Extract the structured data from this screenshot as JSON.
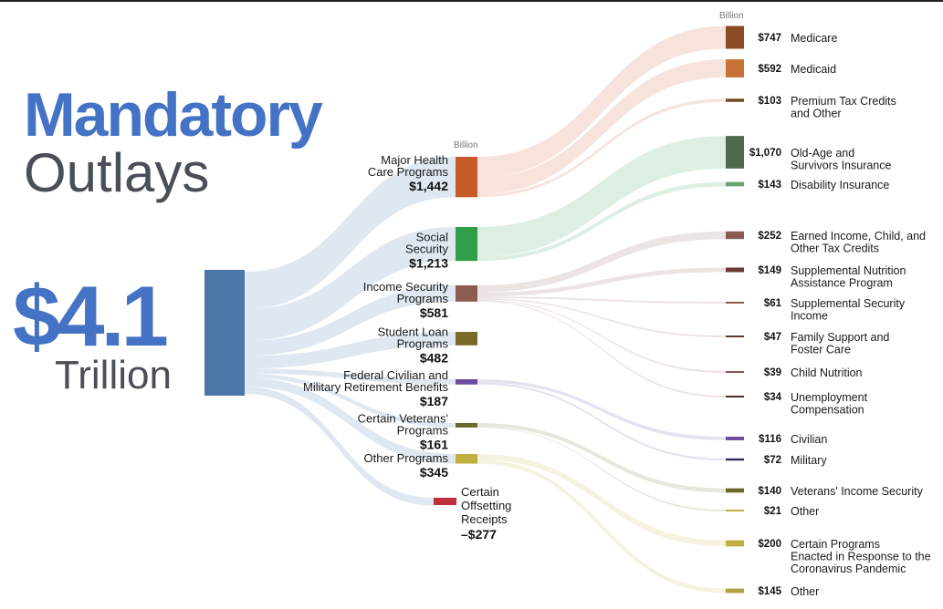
{
  "title": "Mandatory",
  "subtitle": "Outlays",
  "total": {
    "value": "$4.1",
    "unit": "Trillion"
  },
  "unit_headers": {
    "middle": "Billion",
    "right": "Billion"
  },
  "chart_data": {
    "type": "sankey",
    "unit": "Billion",
    "total": 4100,
    "categories": [
      {
        "name_lines": [
          "Major Health",
          "Care Programs"
        ],
        "value": 1442,
        "value_label": "$1,442",
        "color": "#c65a28",
        "items": [
          {
            "label_lines": [
              "Medicare"
            ],
            "value": 747,
            "value_label": "$747",
            "color": "#8b4a22"
          },
          {
            "label_lines": [
              "Medicaid"
            ],
            "value": 592,
            "value_label": "$592",
            "color": "#c87137"
          },
          {
            "label_lines": [
              "Premium Tax Credits",
              "and Other"
            ],
            "value": 103,
            "value_label": "$103",
            "color": "#6b4a1c"
          }
        ]
      },
      {
        "name_lines": [
          "Social",
          "Security"
        ],
        "value": 1213,
        "value_label": "$1,213",
        "color": "#2e9e4a",
        "items": [
          {
            "label_lines": [
              "Old-Age and",
              "Survivors Insurance"
            ],
            "value": 1070,
            "value_label": "$1,070",
            "color": "#4e6b4f"
          },
          {
            "label_lines": [
              "Disability Insurance"
            ],
            "value": 143,
            "value_label": "$143",
            "color": "#6ba475"
          }
        ]
      },
      {
        "name_lines": [
          "Income Security",
          "Programs"
        ],
        "value": 581,
        "value_label": "$581",
        "color": "#8b5a50",
        "items": [
          {
            "label_lines": [
              "Earned Income, Child, and",
              "Other Tax Credits"
            ],
            "value": 252,
            "value_label": "$252",
            "color": "#8b5a50"
          },
          {
            "label_lines": [
              "Supplemental Nutrition",
              "Assistance Program"
            ],
            "value": 149,
            "value_label": "$149",
            "color": "#6b3a30"
          },
          {
            "label_lines": [
              "Supplemental Security",
              "Income"
            ],
            "value": 61,
            "value_label": "$61",
            "color": "#8b5a50"
          },
          {
            "label_lines": [
              "Family Support and",
              "Foster Care"
            ],
            "value": 47,
            "value_label": "$47",
            "color": "#5a3a30"
          },
          {
            "label_lines": [
              "Child Nutrition"
            ],
            "value": 39,
            "value_label": "$39",
            "color": "#8b5a50"
          },
          {
            "label_lines": [
              "Unemployment",
              "Compensation"
            ],
            "value": 34,
            "value_label": "$34",
            "color": "#4a3228"
          }
        ]
      },
      {
        "name_lines": [
          "Student Loan",
          "Programs"
        ],
        "value": 482,
        "value_label": "$482",
        "color": "#7a6a28",
        "items": []
      },
      {
        "name_lines": [
          "Federal Civilian and",
          "Military Retirement Benefits"
        ],
        "value": 187,
        "value_label": "$187",
        "color": "#6a4aa0",
        "items": [
          {
            "label_lines": [
              "Civilian"
            ],
            "value": 116,
            "value_label": "$116",
            "color": "#6a4aa0"
          },
          {
            "label_lines": [
              "Military"
            ],
            "value": 72,
            "value_label": "$72",
            "color": "#3a2a60"
          }
        ]
      },
      {
        "name_lines": [
          "Certain Veterans'",
          "Programs"
        ],
        "value": 161,
        "value_label": "$161",
        "color": "#6b6a2e",
        "items": [
          {
            "label_lines": [
              "Veterans' Income Security"
            ],
            "value": 140,
            "value_label": "$140",
            "color": "#6b6a2e"
          },
          {
            "label_lines": [
              "Other"
            ],
            "value": 21,
            "value_label": "$21",
            "color": "#b8b040"
          }
        ]
      },
      {
        "name_lines": [
          "Other Programs"
        ],
        "value": 345,
        "value_label": "$345",
        "color": "#c0b040",
        "items": [
          {
            "label_lines": [
              "Certain Programs",
              "Enacted in Response to the",
              "Coronavirus Pandemic"
            ],
            "value": 200,
            "value_label": "$200",
            "color": "#c0b040"
          },
          {
            "label_lines": [
              "Other"
            ],
            "value": 145,
            "value_label": "$145",
            "color": "#b0a040"
          }
        ]
      },
      {
        "name_lines": [
          "Certain",
          "Offsetting",
          "Receipts"
        ],
        "value": -277,
        "value_label": "–$277",
        "color": "#c0303a",
        "items": []
      }
    ]
  }
}
